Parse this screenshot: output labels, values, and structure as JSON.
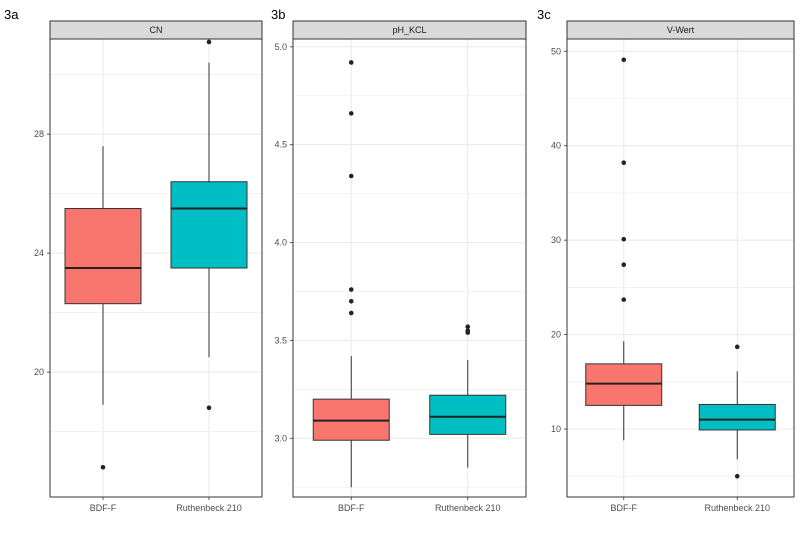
{
  "figure": {
    "panel_labels": [
      "3a",
      "3b",
      "3c"
    ],
    "colors": {
      "fill_a": "#F8766D",
      "fill_b": "#00BFC4",
      "strip_bg": "#D9D9D9",
      "panel_border": "#333333",
      "grid": "#EBEBEB",
      "text": "#4D4D4D"
    }
  },
  "chart_data": [
    {
      "type": "boxplot",
      "panel_label": "3a",
      "title": "CN",
      "xlabel": "",
      "ylabel": "",
      "categories": [
        "BDF-F",
        "Ruthenbeck 210"
      ],
      "ylim": [
        15.8,
        31.2
      ],
      "yticks": [
        20,
        24,
        28
      ],
      "grid": true,
      "boxes": [
        {
          "category": "BDF-F",
          "whisker_low": 18.9,
          "q1": 22.3,
          "median": 23.5,
          "q3": 25.5,
          "whisker_high": 27.6,
          "outliers": [
            16.8
          ]
        },
        {
          "category": "Ruthenbeck 210",
          "whisker_low": 20.5,
          "q1": 23.5,
          "median": 25.5,
          "q3": 26.4,
          "whisker_high": 30.4,
          "outliers": [
            18.8,
            31.1
          ]
        }
      ]
    },
    {
      "type": "boxplot",
      "panel_label": "3b",
      "title": "pH_KCL",
      "xlabel": "",
      "ylabel": "",
      "categories": [
        "BDF-F",
        "Ruthenbeck 210"
      ],
      "ylim": [
        2.7,
        5.04
      ],
      "yticks": [
        3.0,
        3.5,
        4.0,
        4.5,
        5.0
      ],
      "ytick_labels": [
        "3.0",
        "3.5",
        "4.0",
        "4.5",
        "5.0"
      ],
      "grid": true,
      "boxes": [
        {
          "category": "BDF-F",
          "whisker_low": 2.75,
          "q1": 2.99,
          "median": 3.09,
          "q3": 3.2,
          "whisker_high": 3.42,
          "outliers": [
            3.64,
            3.7,
            3.76,
            4.34,
            4.66,
            4.92
          ]
        },
        {
          "category": "Ruthenbeck 210",
          "whisker_low": 2.85,
          "q1": 3.02,
          "median": 3.11,
          "q3": 3.22,
          "whisker_high": 3.4,
          "outliers": [
            3.54,
            3.55,
            3.57
          ]
        }
      ]
    },
    {
      "type": "boxplot",
      "panel_label": "3c",
      "title": "V-Wert",
      "xlabel": "",
      "ylabel": "",
      "categories": [
        "BDF-F",
        "Ruthenbeck 210"
      ],
      "ylim": [
        2.8,
        51.3
      ],
      "yticks": [
        10,
        20,
        30,
        40,
        50
      ],
      "grid": true,
      "boxes": [
        {
          "category": "BDF-F",
          "whisker_low": 8.8,
          "q1": 12.5,
          "median": 14.8,
          "q3": 16.9,
          "whisker_high": 19.3,
          "outliers": [
            23.7,
            27.4,
            30.1,
            38.2,
            49.1
          ]
        },
        {
          "category": "Ruthenbeck 210",
          "whisker_low": 6.8,
          "q1": 9.9,
          "median": 11.0,
          "q3": 12.6,
          "whisker_high": 16.1,
          "outliers": [
            5.0,
            18.7
          ]
        }
      ]
    }
  ]
}
